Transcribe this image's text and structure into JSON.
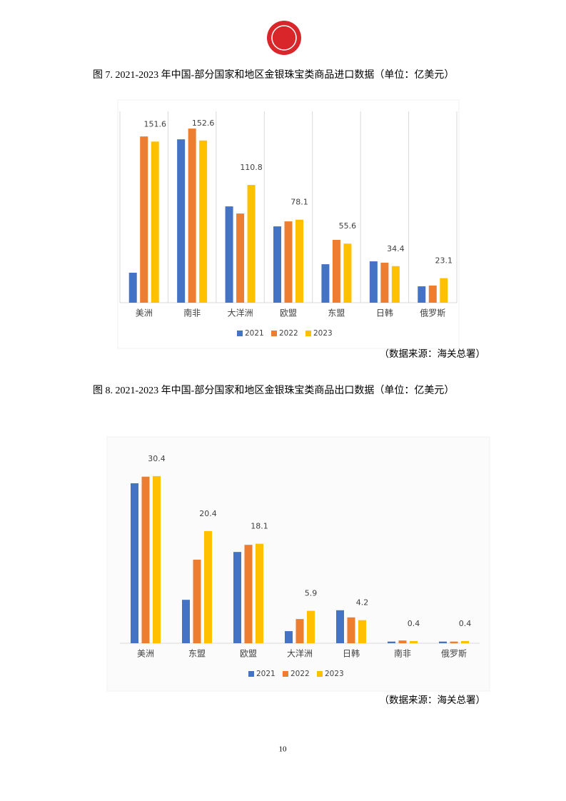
{
  "chart_data": [
    {
      "type": "bar",
      "title": "图 7. 2021-2023 年中国-部分国家和地区金银珠宝类商品进口数据（单位：亿美元）",
      "source": "（数据来源：海关总署）",
      "categories": [
        "美洲",
        "南非",
        "大洋洲",
        "欧盟",
        "东盟",
        "日韩",
        "俄罗斯"
      ],
      "series": [
        {
          "name": "2021",
          "color": "#4472c4",
          "values": [
            28.2,
            153.7,
            90.6,
            71.8,
            36.2,
            38.9,
            15.4
          ]
        },
        {
          "name": "2022",
          "color": "#ed7d31",
          "values": [
            156.4,
            163.8,
            83.9,
            76.5,
            59.1,
            37.6,
            16.1
          ]
        },
        {
          "name": "2023",
          "color": "#ffc000",
          "values": [
            151.6,
            152.6,
            110.8,
            78.1,
            55.6,
            34.4,
            23.1
          ],
          "show_labels": true
        }
      ],
      "ylim": [
        0,
        180
      ],
      "grid": true,
      "legend": "bottom"
    },
    {
      "type": "bar",
      "title": "图 8. 2021-2023 年中国-部分国家和地区金银珠宝类商品出口数据（单位：亿美元）",
      "source": "（数据来源：海关总署）",
      "categories": [
        "美洲",
        "东盟",
        "欧盟",
        "大洋洲",
        "日韩",
        "南非",
        "俄罗斯"
      ],
      "series": [
        {
          "name": "2021",
          "color": "#4472c4",
          "values": [
            29.1,
            7.9,
            16.6,
            2.2,
            6.0,
            0.3,
            0.3
          ]
        },
        {
          "name": "2022",
          "color": "#ed7d31",
          "values": [
            30.3,
            15.2,
            17.9,
            4.4,
            4.7,
            0.5,
            0.3
          ]
        },
        {
          "name": "2023",
          "color": "#ffc000",
          "values": [
            30.4,
            20.4,
            18.1,
            5.9,
            4.2,
            0.4,
            0.4
          ],
          "show_labels": true
        }
      ],
      "ylim": [
        0,
        35
      ],
      "grid": false,
      "legend": "bottom"
    }
  ],
  "page_number": "10"
}
